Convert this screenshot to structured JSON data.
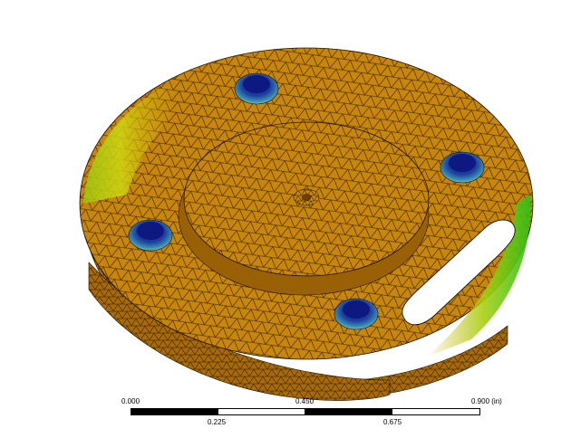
{
  "viewport": {
    "background": "#ffffff",
    "model": {
      "part": "circular plate with raised boss, four bolt holes and a slot",
      "mesh": "triangular mesh overlay",
      "colors": {
        "body": "#c8860a",
        "body_side": "#a86a06",
        "mesh_line": "#2a1a00",
        "hot_yellow": "#d6dc10",
        "hot_green": "#2fbf18",
        "bolt_dark": "#14206e",
        "bolt_light": "#4aa0c0"
      }
    }
  },
  "scale_bar": {
    "unit": "(in)",
    "top_labels": {
      "left": "0.000",
      "middle": "0.450",
      "right": "0.900"
    },
    "bottom_labels": {
      "first": "0.225",
      "second": "0.675"
    }
  }
}
